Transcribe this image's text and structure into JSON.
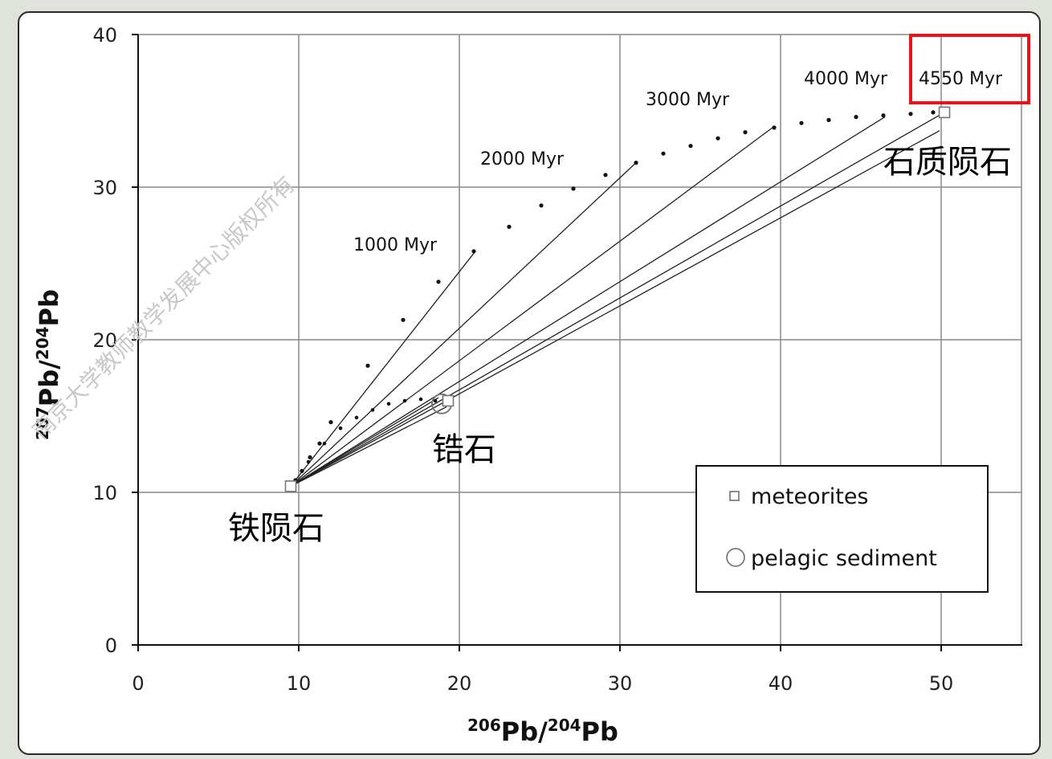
{
  "chart_data": {
    "type": "scatter",
    "xlabel": {
      "sup1": "206",
      "main1": "Pb/",
      "sup2": "204",
      "main2": "Pb"
    },
    "ylabel": {
      "sup1": "207",
      "main1": "Pb/",
      "sup2": "204",
      "main2": "Pb"
    },
    "xlim": [
      0,
      55
    ],
    "ylim": [
      0,
      40
    ],
    "xticks": [
      "0",
      "10",
      "20",
      "30",
      "40",
      "50"
    ],
    "yticks": [
      "0",
      "10",
      "20",
      "30",
      "40"
    ],
    "grid": true,
    "meteorites": [
      {
        "x": 9.5,
        "y": 10.4
      },
      {
        "x": 19.3,
        "y": 16.0
      },
      {
        "x": 50.2,
        "y": 34.9
      }
    ],
    "pelagic_sediment": [
      {
        "x": 18.9,
        "y": 15.8
      }
    ],
    "growth_curve": [
      {
        "x": 9.8,
        "y": 10.8
      },
      {
        "x": 10.2,
        "y": 11.4
      },
      {
        "x": 10.7,
        "y": 12.3
      },
      {
        "x": 11.3,
        "y": 13.2
      },
      {
        "x": 12.0,
        "y": 14.6
      },
      {
        "x": 14.3,
        "y": 18.3
      },
      {
        "x": 16.5,
        "y": 21.3
      },
      {
        "x": 18.7,
        "y": 23.8
      },
      {
        "x": 20.9,
        "y": 25.8
      },
      {
        "x": 23.1,
        "y": 27.4
      },
      {
        "x": 25.1,
        "y": 28.8
      },
      {
        "x": 27.1,
        "y": 29.9
      },
      {
        "x": 29.1,
        "y": 30.8
      },
      {
        "x": 31.0,
        "y": 31.6
      },
      {
        "x": 32.7,
        "y": 32.2
      },
      {
        "x": 34.4,
        "y": 32.7
      },
      {
        "x": 36.1,
        "y": 33.2
      },
      {
        "x": 37.8,
        "y": 33.6
      },
      {
        "x": 39.6,
        "y": 33.9
      },
      {
        "x": 41.3,
        "y": 34.2
      },
      {
        "x": 43.0,
        "y": 34.4
      },
      {
        "x": 44.7,
        "y": 34.6
      },
      {
        "x": 46.4,
        "y": 34.7
      },
      {
        "x": 48.1,
        "y": 34.8
      },
      {
        "x": 49.5,
        "y": 34.9
      }
    ],
    "sediment_curve": [
      {
        "x": 10.6,
        "y": 12.0
      },
      {
        "x": 11.6,
        "y": 13.2
      },
      {
        "x": 12.6,
        "y": 14.2
      },
      {
        "x": 13.6,
        "y": 14.9
      },
      {
        "x": 14.6,
        "y": 15.4
      },
      {
        "x": 15.6,
        "y": 15.8
      },
      {
        "x": 16.6,
        "y": 16.0
      },
      {
        "x": 17.6,
        "y": 16.1
      },
      {
        "x": 18.5,
        "y": 16.0
      }
    ],
    "isochrons": [
      {
        "label": "1000 Myr",
        "x1": 9.5,
        "y1": 10.4,
        "x2": 21.0,
        "y2": 25.8
      },
      {
        "label": "2000 Myr",
        "x1": 9.5,
        "y1": 10.4,
        "x2": 31.0,
        "y2": 31.6
      },
      {
        "label": "3000 Myr",
        "x1": 9.5,
        "y1": 10.4,
        "x2": 39.5,
        "y2": 33.9
      },
      {
        "label": "4000 Myr",
        "x1": 9.5,
        "y1": 10.4,
        "x2": 46.5,
        "y2": 34.6
      },
      {
        "label": "4550 Myr",
        "x1": 9.5,
        "y1": 10.4,
        "x2": 50.2,
        "y2": 34.9
      },
      {
        "label": "",
        "x1": 9.5,
        "y1": 10.4,
        "x2": 49.9,
        "y2": 33.7
      },
      {
        "label": "",
        "x1": 9.5,
        "y1": 10.4,
        "x2": 18.7,
        "y2": 16.2
      },
      {
        "label": "",
        "x1": 9.5,
        "y1": 10.4,
        "x2": 19.2,
        "y2": 15.6
      }
    ],
    "legend": {
      "placement": "bottom-right",
      "meteorites": "meteorites",
      "pelagic": "pelagic sediment"
    },
    "annotations": {
      "iron": "铁陨石",
      "zircon": "锆石",
      "stony": "石质陨石",
      "watermark": "南京大学教师教学发展中心版权所有"
    },
    "highlight_color": "#e8141b"
  }
}
